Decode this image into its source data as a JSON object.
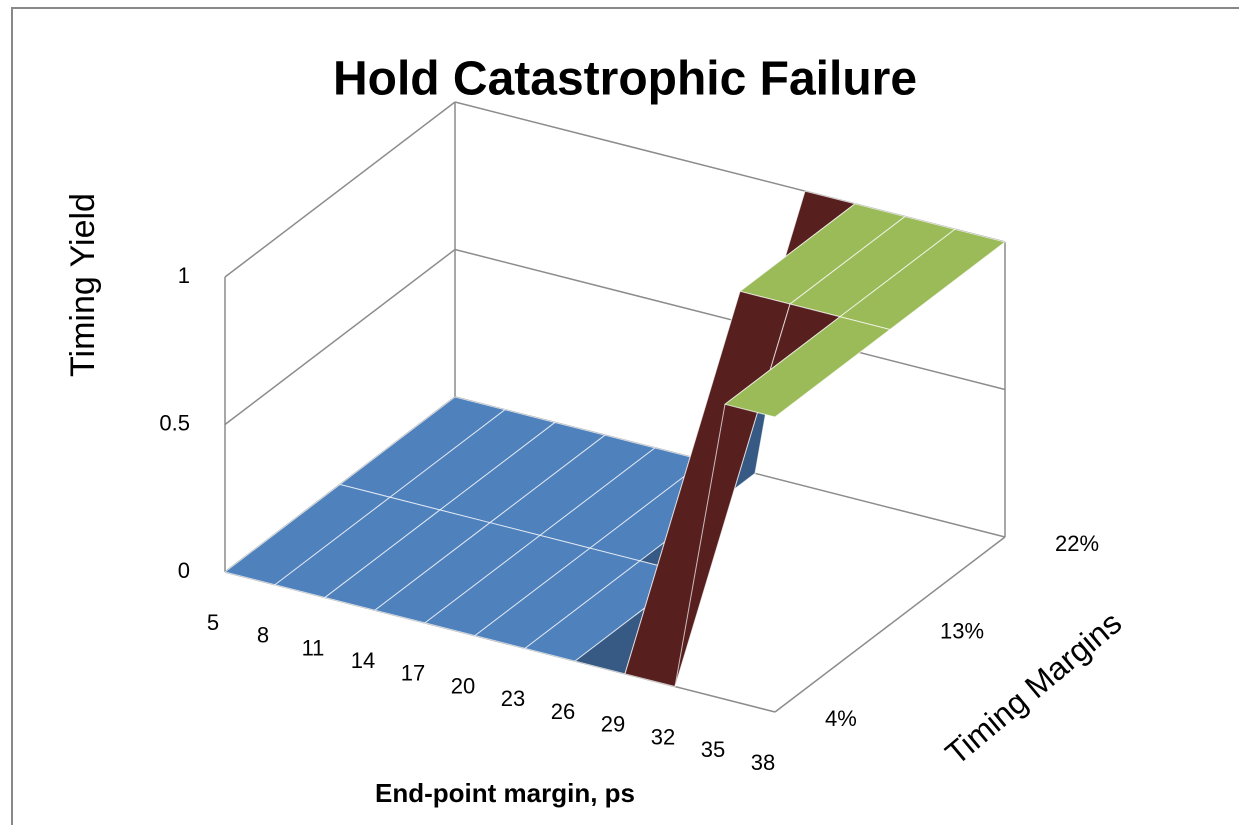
{
  "chart_data": {
    "type": "surface",
    "title": "Hold Catastrophic Failure",
    "x_label": "End-point margin, ps",
    "depth_label": "Timing Margins",
    "z_label": "Timing Yield",
    "categories": [
      5,
      8,
      11,
      14,
      17,
      20,
      23,
      26,
      29,
      32,
      35,
      38
    ],
    "depth_categories": [
      "4%",
      "13%",
      "22%"
    ],
    "rows": [
      [
        0,
        0,
        0,
        0,
        0,
        0,
        0,
        0,
        0,
        0,
        1,
        1
      ],
      [
        0,
        0,
        0,
        0,
        0,
        0,
        0,
        0,
        1,
        1,
        1,
        1
      ],
      [
        0,
        0,
        0,
        0,
        0,
        0,
        0,
        1,
        1,
        1,
        1,
        1
      ]
    ],
    "zlim": [
      0,
      1
    ],
    "zticks": [
      0,
      0.5,
      1
    ],
    "band_colors": [
      "#4f81bd",
      "#7d2d2d",
      "#9bbb59"
    ]
  }
}
